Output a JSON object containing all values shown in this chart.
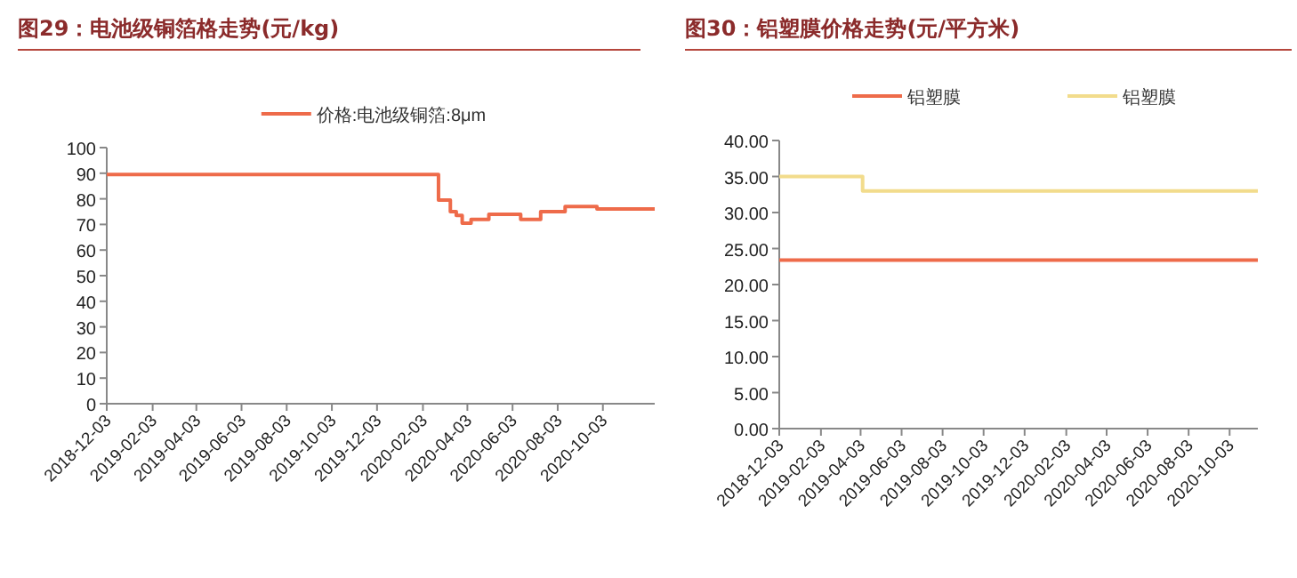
{
  "chart_data": [
    {
      "type": "step",
      "title": "图29：电池级铜箔格走势(元/kg)",
      "legend": "top",
      "xlim": [
        "2018-12-03",
        "2020-12-12"
      ],
      "xticks": [
        "2018-12-03",
        "2019-02-03",
        "2019-04-03",
        "2019-06-03",
        "2019-08-03",
        "2019-10-03",
        "2019-12-03",
        "2020-02-03",
        "2020-04-03",
        "2020-06-03",
        "2020-08-03",
        "2020-10-03"
      ],
      "ylim": [
        0,
        100
      ],
      "yticks": [
        0,
        10,
        20,
        30,
        40,
        50,
        60,
        70,
        80,
        90,
        100
      ],
      "series": [
        {
          "name": "价格:电池级铜箔:8μm",
          "color": "#ee6b4a",
          "x": [
            "2018-12-03",
            "2020-02-24",
            "2020-03-11",
            "2020-03-19",
            "2020-03-27",
            "2020-04-08",
            "2020-05-02",
            "2020-06-14",
            "2020-07-11",
            "2020-08-13",
            "2020-09-25",
            "2020-12-12"
          ],
          "values": [
            89.5,
            79.5,
            75,
            73.5,
            70.5,
            72,
            74,
            72,
            75,
            77,
            76,
            76
          ]
        }
      ]
    },
    {
      "type": "step",
      "title": "图30：铝塑膜价格走势(元/平方米)",
      "legend": "top",
      "xlim": [
        "2018-12-03",
        "2020-11-14"
      ],
      "xticks": [
        "2018-12-03",
        "2019-02-03",
        "2019-04-03",
        "2019-06-03",
        "2019-08-03",
        "2019-10-03",
        "2019-12-03",
        "2020-02-03",
        "2020-04-03",
        "2020-06-03",
        "2020-08-03",
        "2020-10-03"
      ],
      "ylim": [
        0,
        40
      ],
      "yticks": [
        {
          "value": 0,
          "label": "0.00"
        },
        {
          "value": 5,
          "label": "5.00"
        },
        {
          "value": 10,
          "label": "10.00"
        },
        {
          "value": 15,
          "label": "15.00"
        },
        {
          "value": 20,
          "label": "20.00"
        },
        {
          "value": 25,
          "label": "25.00"
        },
        {
          "value": 30,
          "label": "30.00"
        },
        {
          "value": 35,
          "label": "35.00"
        },
        {
          "value": 40,
          "label": "40.00"
        }
      ],
      "series": [
        {
          "name": "铝塑膜",
          "color": "#ee6b4a",
          "x": [
            "2018-12-03",
            "2020-11-14"
          ],
          "values": [
            23.4,
            23.4
          ]
        },
        {
          "name": "铝塑膜",
          "color": "#f2dc8c",
          "x": [
            "2018-12-03",
            "2019-04-06",
            "2020-11-14"
          ],
          "values": [
            35,
            33,
            33
          ]
        }
      ]
    }
  ]
}
